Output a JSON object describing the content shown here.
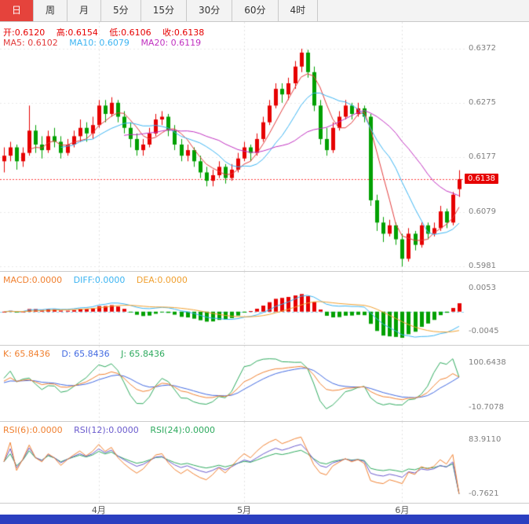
{
  "toolbar": {
    "tabs": [
      {
        "label": "日",
        "active": true
      },
      {
        "label": "周",
        "active": false
      },
      {
        "label": "月",
        "active": false
      },
      {
        "label": "5分",
        "active": false
      },
      {
        "label": "15分",
        "active": false
      },
      {
        "label": "30分",
        "active": false
      },
      {
        "label": "60分",
        "active": false
      },
      {
        "label": "4时",
        "active": false
      }
    ]
  },
  "panes": {
    "main": {
      "legend_ohlc": {
        "open": "开:0.6120",
        "high": "高:0.6154",
        "low": "低:0.6106",
        "close": "收:0.6138"
      },
      "legend_ma": {
        "ma5": "MA5: 0.6102",
        "ma10": "MA10: 0.6079",
        "ma20": "MA20: 0.6119"
      },
      "y_ticks": [
        "0.6372",
        "0.6275",
        "0.6177",
        "0.6079",
        "0.5981"
      ],
      "price_badge": "0.6138"
    },
    "macd": {
      "legend": {
        "macd": "MACD:0.0000",
        "diff": "DIFF:0.0000",
        "dea": "DEA:0.0000"
      },
      "y_ticks": [
        "0.0053",
        "-0.0045"
      ]
    },
    "kdj": {
      "legend": {
        "k": "K: 65.8436",
        "d": "D: 65.8436",
        "j": "J: 65.8436"
      },
      "y_ticks": [
        "100.6438",
        "-10.7078"
      ]
    },
    "rsi": {
      "legend": {
        "r6": "RSI(6):0.0000",
        "r12": "RSI(12):0.0000",
        "r24": "RSI(24):0.0000"
      },
      "y_ticks": [
        "83.9110",
        "-0.7621"
      ]
    }
  },
  "x_axis": {
    "ticks": [
      {
        "index": 15,
        "label": "4月"
      },
      {
        "index": 38,
        "label": "5月"
      },
      {
        "index": 63,
        "label": "6月"
      }
    ]
  },
  "colors": {
    "up": "#e60000",
    "down": "#00a000",
    "text_red": "#e60000",
    "ma5": "#e23b3b",
    "ma10": "#3bb4f2",
    "ma20": "#c030c0",
    "macd_label": "#f08030",
    "diff": "#3bb4f2",
    "dea": "#f0a030",
    "k": "#f08030",
    "d": "#4169e1",
    "j": "#2eaa5e",
    "rsi6": "#f08030",
    "rsi12": "#6a5acd",
    "rsi24": "#2eaa5e",
    "grid": "#e8e8e8",
    "vgrid": "#e2e2e2",
    "axis_text": "#808080",
    "price_line": "#ff4040",
    "badge_bg": "#e60000",
    "zero_line": "#8fd4f0",
    "tab_active_bg": "#e5433c",
    "bottom_bar": "#2b3fc0"
  },
  "chart_data": [
    {
      "type": "candlestick",
      "name": "price",
      "ylim": [
        0.5973,
        0.642
      ],
      "y_ticks": [
        0.6372,
        0.6275,
        0.6177,
        0.6079,
        0.5981
      ],
      "last_price": 0.6138,
      "legend_last": {
        "open": 0.612,
        "high": 0.6154,
        "low": 0.6106,
        "close": 0.6138
      },
      "series": [
        {
          "name": "MA5",
          "type": "line",
          "derived": "sma(close,5)",
          "last": 0.6102
        },
        {
          "name": "MA10",
          "type": "line",
          "derived": "sma(close,10)",
          "last": 0.6079
        },
        {
          "name": "MA20",
          "type": "line",
          "derived": "sma(close,20)",
          "last": 0.6119
        }
      ],
      "ohlc": [
        [
          0.617,
          0.6195,
          0.615,
          0.618
        ],
        [
          0.618,
          0.6205,
          0.617,
          0.6195
        ],
        [
          0.6195,
          0.62,
          0.6155,
          0.617
        ],
        [
          0.617,
          0.6195,
          0.616,
          0.6185
        ],
        [
          0.6185,
          0.627,
          0.618,
          0.6225
        ],
        [
          0.6225,
          0.6235,
          0.6185,
          0.62
        ],
        [
          0.62,
          0.6215,
          0.6175,
          0.619
        ],
        [
          0.619,
          0.6225,
          0.6185,
          0.6215
        ],
        [
          0.6215,
          0.623,
          0.6195,
          0.6205
        ],
        [
          0.6205,
          0.6215,
          0.6175,
          0.6185
        ],
        [
          0.6185,
          0.621,
          0.618,
          0.62
        ],
        [
          0.62,
          0.6225,
          0.6195,
          0.6215
        ],
        [
          0.6215,
          0.6245,
          0.6205,
          0.623
        ],
        [
          0.623,
          0.624,
          0.6205,
          0.622
        ],
        [
          0.622,
          0.625,
          0.621,
          0.6235
        ],
        [
          0.6235,
          0.628,
          0.623,
          0.627
        ],
        [
          0.627,
          0.628,
          0.624,
          0.6255
        ],
        [
          0.6255,
          0.6285,
          0.625,
          0.6275
        ],
        [
          0.6275,
          0.628,
          0.624,
          0.625
        ],
        [
          0.625,
          0.626,
          0.622,
          0.623
        ],
        [
          0.623,
          0.624,
          0.6195,
          0.621
        ],
        [
          0.621,
          0.622,
          0.618,
          0.619
        ],
        [
          0.619,
          0.621,
          0.618,
          0.62
        ],
        [
          0.62,
          0.623,
          0.6195,
          0.622
        ],
        [
          0.622,
          0.6255,
          0.6215,
          0.6245
        ],
        [
          0.6245,
          0.626,
          0.6235,
          0.625
        ],
        [
          0.625,
          0.6255,
          0.6215,
          0.6225
        ],
        [
          0.6225,
          0.6235,
          0.619,
          0.62
        ],
        [
          0.62,
          0.621,
          0.617,
          0.618
        ],
        [
          0.618,
          0.62,
          0.617,
          0.619
        ],
        [
          0.619,
          0.6195,
          0.616,
          0.617
        ],
        [
          0.617,
          0.618,
          0.614,
          0.615
        ],
        [
          0.615,
          0.616,
          0.6125,
          0.6135
        ],
        [
          0.6135,
          0.6155,
          0.6125,
          0.6145
        ],
        [
          0.6145,
          0.617,
          0.614,
          0.616
        ],
        [
          0.616,
          0.6165,
          0.613,
          0.614
        ],
        [
          0.614,
          0.6165,
          0.6135,
          0.6155
        ],
        [
          0.6155,
          0.6185,
          0.615,
          0.6175
        ],
        [
          0.6175,
          0.6205,
          0.617,
          0.6195
        ],
        [
          0.6195,
          0.62,
          0.617,
          0.6185
        ],
        [
          0.6185,
          0.622,
          0.618,
          0.621
        ],
        [
          0.621,
          0.625,
          0.6205,
          0.624
        ],
        [
          0.624,
          0.628,
          0.6235,
          0.627
        ],
        [
          0.627,
          0.631,
          0.6265,
          0.63
        ],
        [
          0.63,
          0.631,
          0.6275,
          0.629
        ],
        [
          0.629,
          0.632,
          0.628,
          0.631
        ],
        [
          0.631,
          0.635,
          0.63,
          0.634
        ],
        [
          0.634,
          0.6372,
          0.633,
          0.6365
        ],
        [
          0.6365,
          0.637,
          0.632,
          0.633
        ],
        [
          0.633,
          0.634,
          0.626,
          0.627
        ],
        [
          0.627,
          0.628,
          0.62,
          0.621
        ],
        [
          0.621,
          0.623,
          0.618,
          0.619
        ],
        [
          0.619,
          0.624,
          0.6185,
          0.623
        ],
        [
          0.623,
          0.626,
          0.6225,
          0.625
        ],
        [
          0.625,
          0.628,
          0.6245,
          0.627
        ],
        [
          0.627,
          0.6275,
          0.6245,
          0.6255
        ],
        [
          0.6255,
          0.6275,
          0.625,
          0.6265
        ],
        [
          0.6265,
          0.627,
          0.624,
          0.625
        ],
        [
          0.625,
          0.6255,
          0.609,
          0.61
        ],
        [
          0.61,
          0.611,
          0.6045,
          0.606
        ],
        [
          0.606,
          0.607,
          0.6025,
          0.604
        ],
        [
          0.604,
          0.6065,
          0.6035,
          0.6055
        ],
        [
          0.6055,
          0.606,
          0.602,
          0.603
        ],
        [
          0.603,
          0.604,
          0.5981,
          0.5995
        ],
        [
          0.5995,
          0.605,
          0.599,
          0.604
        ],
        [
          0.604,
          0.6045,
          0.601,
          0.602
        ],
        [
          0.602,
          0.606,
          0.6015,
          0.6055
        ],
        [
          0.6055,
          0.606,
          0.603,
          0.604
        ],
        [
          0.604,
          0.606,
          0.6035,
          0.605
        ],
        [
          0.605,
          0.609,
          0.6045,
          0.608
        ],
        [
          0.608,
          0.6085,
          0.605,
          0.606
        ],
        [
          0.606,
          0.6115,
          0.6055,
          0.611
        ],
        [
          0.612,
          0.6154,
          0.6106,
          0.6138
        ]
      ]
    },
    {
      "type": "bar",
      "name": "MACD",
      "ylim": [
        -0.0075,
        0.009
      ],
      "y_ticks": [
        0.0053,
        -0.0045
      ],
      "series": [
        {
          "name": "DIFF",
          "derived": "ema(close,12)-ema(close,26)",
          "last": 0.0
        },
        {
          "name": "DEA",
          "derived": "ema(DIFF,9)",
          "last": 0.0
        },
        {
          "name": "MACD_BAR",
          "derived": "2*(DIFF-DEA)",
          "last": 0.0
        }
      ]
    },
    {
      "type": "line",
      "name": "KDJ",
      "ylim": [
        -45,
        145
      ],
      "y_ticks": [
        100.6438,
        -10.7078
      ],
      "params": [
        9,
        3,
        3
      ],
      "last": {
        "k": 65.8436,
        "d": 65.8436,
        "j": 65.8436
      }
    },
    {
      "type": "line",
      "name": "RSI",
      "ylim": [
        -14,
        112
      ],
      "y_ticks": [
        83.911,
        -0.7621
      ],
      "periods": [
        6,
        12,
        24
      ],
      "last": {
        "r6": 0.0,
        "r12": 0.0,
        "r24": 0.0
      }
    }
  ]
}
